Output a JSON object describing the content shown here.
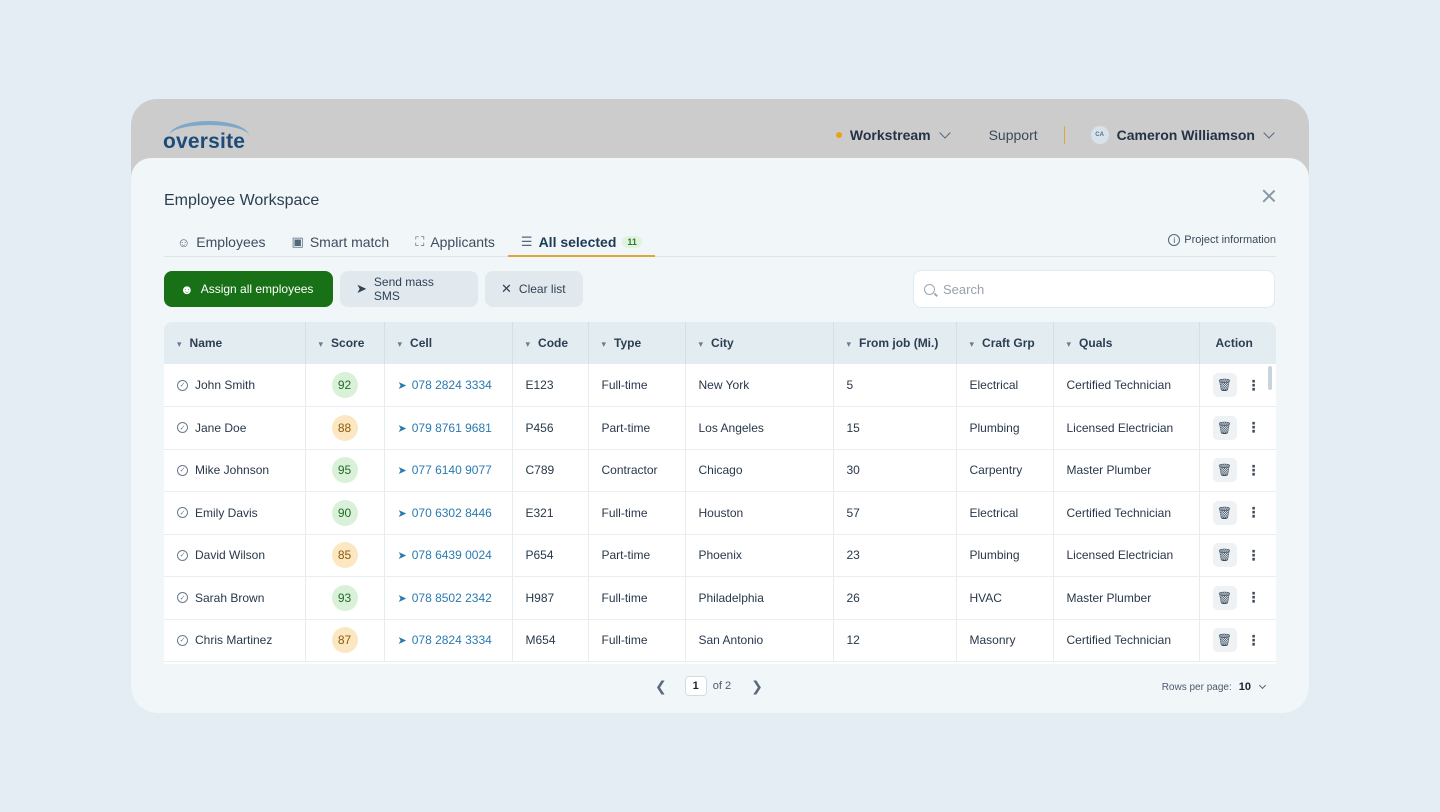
{
  "app": {
    "logo": "oversite"
  },
  "nav": {
    "workstream": "Workstream",
    "support": "Support",
    "user_initials": "CA",
    "user_name": "Cameron Williamson"
  },
  "panel": {
    "title": "Employee Workspace",
    "project_info": "Project information"
  },
  "tabs": [
    {
      "label": "Employees",
      "icon": "users-icon"
    },
    {
      "label": "Smart match",
      "icon": "image-icon"
    },
    {
      "label": "Applicants",
      "icon": "scan-user-icon"
    },
    {
      "label": "All selected",
      "icon": "list-icon",
      "count": "11"
    }
  ],
  "toolbar": {
    "assign": "Assign all employees",
    "sms": "Send mass SMS",
    "clear": "Clear list"
  },
  "search": {
    "placeholder": "Search"
  },
  "table": {
    "columns": [
      "Name",
      "Score",
      "Cell",
      "Code",
      "Type",
      "City",
      "From job (Mi.)",
      "Craft Grp",
      "Quals",
      "Action"
    ],
    "rows": [
      {
        "name": "John Smith",
        "score": "92",
        "score_level": "high",
        "cell": "078 2824 3334",
        "code": "E123",
        "type": "Full-time",
        "city": "New York",
        "from_job": "5",
        "craft": "Electrical",
        "quals": "Certified Technician"
      },
      {
        "name": "Jane Doe",
        "score": "88",
        "score_level": "mid",
        "cell": "079 8761 9681",
        "code": "P456",
        "type": "Part-time",
        "city": "Los Angeles",
        "from_job": "15",
        "craft": "Plumbing",
        "quals": "Licensed Electrician"
      },
      {
        "name": "Mike Johnson",
        "score": "95",
        "score_level": "high",
        "cell": "077 6140 9077",
        "code": "C789",
        "type": "Contractor",
        "city": "Chicago",
        "from_job": "30",
        "craft": "Carpentry",
        "quals": "Master Plumber"
      },
      {
        "name": "Emily Davis",
        "score": "90",
        "score_level": "high",
        "cell": "070 6302 8446",
        "code": "E321",
        "type": "Full-time",
        "city": "Houston",
        "from_job": "57",
        "craft": "Electrical",
        "quals": "Certified Technician"
      },
      {
        "name": "David Wilson",
        "score": "85",
        "score_level": "mid",
        "cell": "078 6439 0024",
        "code": "P654",
        "type": "Part-time",
        "city": "Phoenix",
        "from_job": "23",
        "craft": "Plumbing",
        "quals": "Licensed Electrician"
      },
      {
        "name": "Sarah Brown",
        "score": "93",
        "score_level": "high",
        "cell": "078 8502 2342",
        "code": "H987",
        "type": "Full-time",
        "city": "Philadelphia",
        "from_job": "26",
        "craft": "HVAC",
        "quals": "Master Plumber"
      },
      {
        "name": "Chris Martinez",
        "score": "87",
        "score_level": "mid",
        "cell": "078 2824 3334",
        "code": "M654",
        "type": "Full-time",
        "city": "San Antonio",
        "from_job": "12",
        "craft": "Masonry",
        "quals": "Certified Technician"
      }
    ]
  },
  "pagination": {
    "current": "1",
    "of": "of 2",
    "rows_label": "Rows per page:",
    "rows_value": "10"
  },
  "colors": {
    "accent_green": "#197117",
    "tab_underline": "#e0a63a",
    "link": "#2a7ab0"
  }
}
